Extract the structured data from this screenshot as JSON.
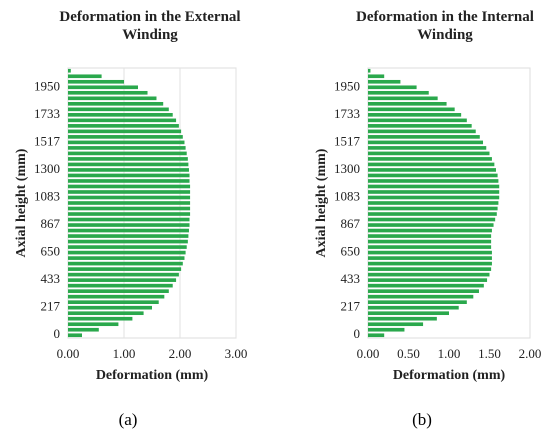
{
  "chart_data": [
    {
      "type": "barh",
      "title": "Deformation in the External Winding",
      "xlabel": "Deformation (mm)",
      "ylabel": "Axial height (mm)",
      "categories": [
        "0",
        null,
        null,
        null,
        null,
        "217",
        null,
        null,
        null,
        null,
        "433",
        null,
        null,
        null,
        null,
        "650",
        null,
        null,
        null,
        null,
        "867",
        null,
        null,
        null,
        null,
        "1083",
        null,
        null,
        null,
        null,
        "1300",
        null,
        null,
        null,
        null,
        "1517",
        null,
        null,
        null,
        null,
        "1733",
        null,
        null,
        null,
        null,
        "1950",
        null,
        null,
        null
      ],
      "values": [
        0.25,
        0.55,
        0.9,
        1.15,
        1.35,
        1.5,
        1.62,
        1.72,
        1.8,
        1.87,
        1.93,
        1.98,
        2.02,
        2.05,
        2.08,
        2.1,
        2.12,
        2.14,
        2.15,
        2.16,
        2.17,
        2.17,
        2.18,
        2.18,
        2.18,
        2.18,
        2.18,
        2.18,
        2.17,
        2.17,
        2.16,
        2.15,
        2.14,
        2.12,
        2.1,
        2.08,
        2.05,
        2.02,
        1.98,
        1.93,
        1.87,
        1.8,
        1.7,
        1.58,
        1.42,
        1.25,
        1.0,
        0.6,
        0.05
      ],
      "color": "#2aa84c",
      "xlim": [
        0,
        3
      ],
      "xticks": [
        {
          "value": 0,
          "label": "0.00"
        },
        {
          "value": 1,
          "label": "1.00"
        },
        {
          "value": 2,
          "label": "2.00"
        },
        {
          "value": 3,
          "label": "3.00"
        }
      ],
      "grid": true
    },
    {
      "type": "barh",
      "title": "Deformation in the Internal Winding",
      "xlabel": "Deformation (mm)",
      "ylabel": "Axial height (mm)",
      "categories": [
        "0",
        null,
        null,
        null,
        null,
        "217",
        null,
        null,
        null,
        null,
        "433",
        null,
        null,
        null,
        null,
        "650",
        null,
        null,
        null,
        null,
        "867",
        null,
        null,
        null,
        null,
        "1083",
        null,
        null,
        null,
        null,
        "1300",
        null,
        null,
        null,
        null,
        "1517",
        null,
        null,
        null,
        null,
        "1733",
        null,
        null,
        null,
        null,
        "1950",
        null,
        null,
        null
      ],
      "values": [
        0.2,
        0.45,
        0.68,
        0.85,
        1.0,
        1.12,
        1.22,
        1.3,
        1.37,
        1.43,
        1.47,
        1.5,
        1.52,
        1.53,
        1.53,
        1.53,
        1.52,
        1.52,
        1.52,
        1.53,
        1.55,
        1.57,
        1.59,
        1.6,
        1.61,
        1.62,
        1.62,
        1.62,
        1.61,
        1.6,
        1.58,
        1.56,
        1.53,
        1.5,
        1.46,
        1.42,
        1.38,
        1.33,
        1.28,
        1.22,
        1.15,
        1.07,
        0.97,
        0.86,
        0.75,
        0.6,
        0.4,
        0.2,
        0.03
      ],
      "color": "#2aa84c",
      "xlim": [
        0,
        2
      ],
      "xticks": [
        {
          "value": 0,
          "label": "0.00"
        },
        {
          "value": 0.5,
          "label": "0.50"
        },
        {
          "value": 1,
          "label": "1.00"
        },
        {
          "value": 1.5,
          "label": "1.50"
        },
        {
          "value": 2,
          "label": "2.00"
        }
      ],
      "grid": false
    }
  ],
  "captions": [
    "(a)",
    "(b)"
  ]
}
